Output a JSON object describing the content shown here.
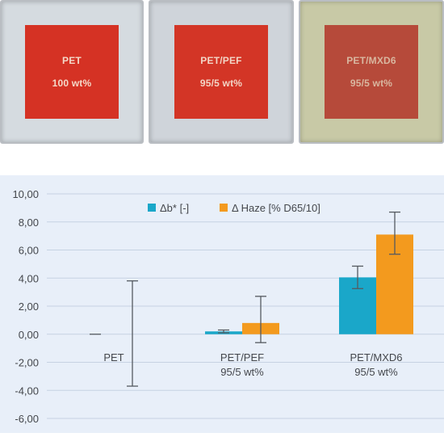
{
  "samples": [
    {
      "line1": "PET",
      "line2": "100 wt%",
      "bg": "#d5dbe0",
      "swatch": "#d53224",
      "text": "#f4d9c9"
    },
    {
      "line1": "PET/PEF",
      "line2": "95/5 wt%",
      "bg": "#cfd4da",
      "swatch": "#d33526",
      "text": "#f2d5c6"
    },
    {
      "line1": "PET/MXD6",
      "line2": "95/5 wt%",
      "bg": "#c8c9a6",
      "swatch": "#b64a3a",
      "text": "#d9b7a0"
    }
  ],
  "chart_data": {
    "type": "bar",
    "categories": [
      [
        "PET"
      ],
      [
        "PET/PEF",
        "95/5 wt%"
      ],
      [
        "PET/MXD6",
        "95/5 wt%"
      ]
    ],
    "series": [
      {
        "name": "Δb* [-]",
        "color": "#1aa7c9",
        "values": [
          0.0,
          0.2,
          4.05
        ],
        "err_low": [
          0.0,
          0.1,
          0.8
        ],
        "err_high": [
          0.0,
          0.1,
          0.8
        ]
      },
      {
        "name": "Δ Haze [% D65/10]",
        "color": "#f39a1e",
        "values": [
          0.0,
          0.8,
          7.1
        ],
        "err_low": [
          3.7,
          1.4,
          1.4
        ],
        "err_high": [
          3.8,
          1.9,
          1.6
        ]
      }
    ],
    "yticks": [
      "10,00",
      "8,00",
      "6,00",
      "4,00",
      "2,00",
      "0,00",
      "-2,00",
      "-4,00",
      "-6,00"
    ],
    "ylim": [
      -6,
      10
    ],
    "grid": true,
    "legend_position": "top-center"
  }
}
